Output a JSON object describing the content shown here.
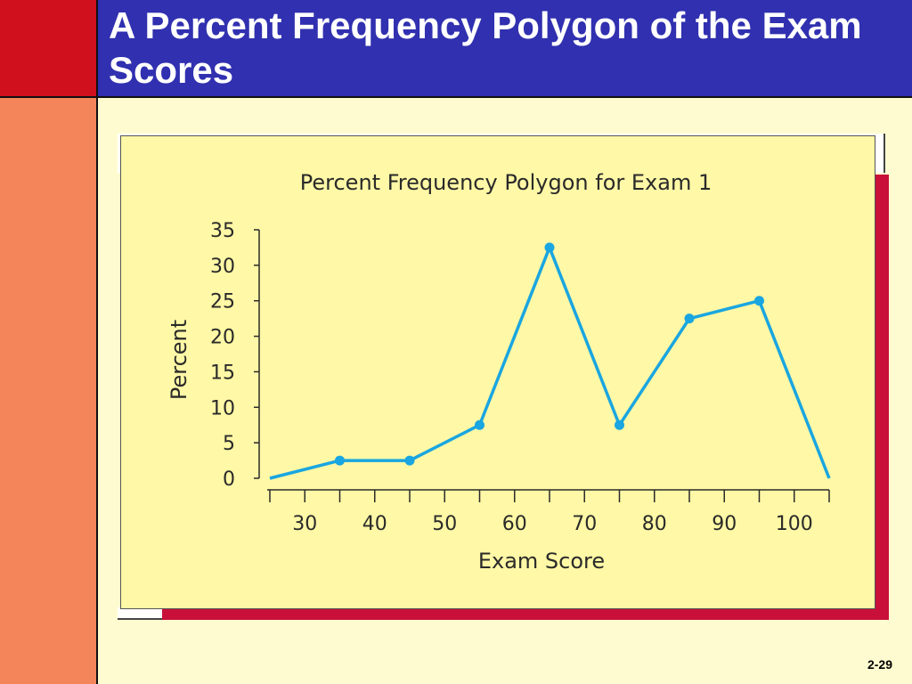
{
  "slide": {
    "title": "A Percent Frequency Polygon of the Exam Scores",
    "slide_number": "2-29"
  },
  "colors": {
    "title_bar": "#3030b0",
    "red_corner": "#d0101c",
    "left_strip": "#f4855a",
    "background": "#fffbd0",
    "chart_background": "#fff8a6",
    "shadow": "#c8103a",
    "line": "#1aa6e0"
  },
  "chart_data": {
    "type": "line",
    "title": "Percent Frequency Polygon for Exam 1",
    "xlabel": "Exam Score",
    "ylabel": "Percent",
    "xlim": [
      25,
      105
    ],
    "ylim": [
      0,
      35
    ],
    "x_ticks": [
      30,
      40,
      50,
      60,
      70,
      80,
      90,
      100
    ],
    "y_ticks": [
      0,
      5,
      10,
      15,
      20,
      25,
      30,
      35
    ],
    "grid": false,
    "series": [
      {
        "x": [
          25,
          35,
          45,
          55,
          65,
          75,
          85,
          95,
          105
        ],
        "y": [
          0,
          2.5,
          2.5,
          7.5,
          32.5,
          7.5,
          22.5,
          25,
          0
        ],
        "markers": [
          false,
          true,
          true,
          true,
          true,
          true,
          true,
          true,
          false
        ]
      }
    ]
  }
}
